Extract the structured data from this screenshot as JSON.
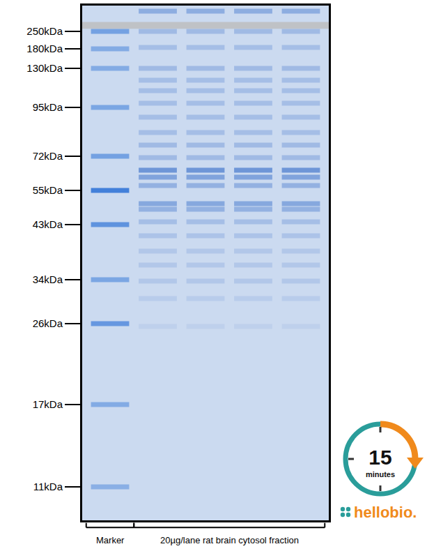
{
  "chart_data": {
    "type": "gel",
    "ylim": [
      0,
      738
    ],
    "yticks": [
      {
        "value": 37,
        "label": "250kDa"
      },
      {
        "value": 62,
        "label": "180kDa"
      },
      {
        "value": 90,
        "label": "130kDa"
      },
      {
        "value": 146,
        "label": "95kDa"
      },
      {
        "value": 216,
        "label": "72kDa"
      },
      {
        "value": 265,
        "label": "55kDa"
      },
      {
        "value": 314,
        "label": "43kDa"
      },
      {
        "value": 393,
        "label": "34kDa"
      },
      {
        "value": 456,
        "label": "26kDa"
      },
      {
        "value": 572,
        "label": "17kDa"
      },
      {
        "value": 690,
        "label": "11kDa"
      }
    ],
    "tick_labels": "y",
    "groups": [
      {
        "label": "Marker",
        "color": "#3b7bd8",
        "lanes": [
          {
            "bands": [
              {
                "y": 37,
                "intensity": 0.6
              },
              {
                "y": 62,
                "intensity": 0.5
              },
              {
                "y": 90,
                "intensity": 0.5
              },
              {
                "y": 146,
                "intensity": 0.55
              },
              {
                "y": 216,
                "intensity": 0.6
              },
              {
                "y": 265,
                "intensity": 0.95
              },
              {
                "y": 314,
                "intensity": 0.75
              },
              {
                "y": 393,
                "intensity": 0.55
              },
              {
                "y": 456,
                "intensity": 0.7
              },
              {
                "y": 572,
                "intensity": 0.5
              },
              {
                "y": 690,
                "intensity": 0.45
              }
            ]
          }
        ]
      },
      {
        "label": "20µg/lane rat brain cytosol fraction",
        "color": "#4f7fcf",
        "lanes": [
          {
            "bands": [
              {
                "y": 8,
                "intensity": 0.5
              },
              {
                "y": 37,
                "intensity": 0.35
              },
              {
                "y": 60,
                "intensity": 0.3
              },
              {
                "y": 90,
                "intensity": 0.35
              },
              {
                "y": 107,
                "intensity": 0.3
              },
              {
                "y": 122,
                "intensity": 0.3
              },
              {
                "y": 140,
                "intensity": 0.3
              },
              {
                "y": 160,
                "intensity": 0.3
              },
              {
                "y": 182,
                "intensity": 0.3
              },
              {
                "y": 200,
                "intensity": 0.35
              },
              {
                "y": 218,
                "intensity": 0.35
              },
              {
                "y": 236,
                "intensity": 0.75
              },
              {
                "y": 246,
                "intensity": 0.6
              },
              {
                "y": 258,
                "intensity": 0.45
              },
              {
                "y": 284,
                "intensity": 0.55
              },
              {
                "y": 292,
                "intensity": 0.45
              },
              {
                "y": 310,
                "intensity": 0.3
              },
              {
                "y": 330,
                "intensity": 0.25
              },
              {
                "y": 352,
                "intensity": 0.2
              },
              {
                "y": 372,
                "intensity": 0.2
              },
              {
                "y": 395,
                "intensity": 0.2
              },
              {
                "y": 420,
                "intensity": 0.15
              },
              {
                "y": 460,
                "intensity": 0.1
              }
            ]
          },
          {
            "bands": [
              {
                "y": 8,
                "intensity": 0.5
              },
              {
                "y": 37,
                "intensity": 0.35
              },
              {
                "y": 60,
                "intensity": 0.3
              },
              {
                "y": 90,
                "intensity": 0.35
              },
              {
                "y": 107,
                "intensity": 0.3
              },
              {
                "y": 122,
                "intensity": 0.3
              },
              {
                "y": 140,
                "intensity": 0.3
              },
              {
                "y": 160,
                "intensity": 0.3
              },
              {
                "y": 182,
                "intensity": 0.3
              },
              {
                "y": 200,
                "intensity": 0.35
              },
              {
                "y": 218,
                "intensity": 0.35
              },
              {
                "y": 236,
                "intensity": 0.75
              },
              {
                "y": 246,
                "intensity": 0.6
              },
              {
                "y": 258,
                "intensity": 0.45
              },
              {
                "y": 284,
                "intensity": 0.55
              },
              {
                "y": 292,
                "intensity": 0.45
              },
              {
                "y": 310,
                "intensity": 0.3
              },
              {
                "y": 330,
                "intensity": 0.25
              },
              {
                "y": 352,
                "intensity": 0.2
              },
              {
                "y": 372,
                "intensity": 0.2
              },
              {
                "y": 395,
                "intensity": 0.2
              },
              {
                "y": 420,
                "intensity": 0.15
              },
              {
                "y": 460,
                "intensity": 0.1
              }
            ]
          },
          {
            "bands": [
              {
                "y": 8,
                "intensity": 0.5
              },
              {
                "y": 37,
                "intensity": 0.35
              },
              {
                "y": 60,
                "intensity": 0.3
              },
              {
                "y": 90,
                "intensity": 0.35
              },
              {
                "y": 107,
                "intensity": 0.3
              },
              {
                "y": 122,
                "intensity": 0.3
              },
              {
                "y": 140,
                "intensity": 0.3
              },
              {
                "y": 160,
                "intensity": 0.3
              },
              {
                "y": 182,
                "intensity": 0.3
              },
              {
                "y": 200,
                "intensity": 0.35
              },
              {
                "y": 218,
                "intensity": 0.35
              },
              {
                "y": 236,
                "intensity": 0.75
              },
              {
                "y": 246,
                "intensity": 0.6
              },
              {
                "y": 258,
                "intensity": 0.45
              },
              {
                "y": 284,
                "intensity": 0.55
              },
              {
                "y": 292,
                "intensity": 0.45
              },
              {
                "y": 310,
                "intensity": 0.3
              },
              {
                "y": 330,
                "intensity": 0.25
              },
              {
                "y": 352,
                "intensity": 0.2
              },
              {
                "y": 372,
                "intensity": 0.2
              },
              {
                "y": 395,
                "intensity": 0.2
              },
              {
                "y": 420,
                "intensity": 0.15
              },
              {
                "y": 460,
                "intensity": 0.1
              }
            ]
          },
          {
            "bands": [
              {
                "y": 8,
                "intensity": 0.5
              },
              {
                "y": 37,
                "intensity": 0.35
              },
              {
                "y": 60,
                "intensity": 0.3
              },
              {
                "y": 90,
                "intensity": 0.35
              },
              {
                "y": 107,
                "intensity": 0.3
              },
              {
                "y": 122,
                "intensity": 0.3
              },
              {
                "y": 140,
                "intensity": 0.3
              },
              {
                "y": 160,
                "intensity": 0.3
              },
              {
                "y": 182,
                "intensity": 0.3
              },
              {
                "y": 200,
                "intensity": 0.35
              },
              {
                "y": 218,
                "intensity": 0.35
              },
              {
                "y": 236,
                "intensity": 0.75
              },
              {
                "y": 246,
                "intensity": 0.6
              },
              {
                "y": 258,
                "intensity": 0.45
              },
              {
                "y": 284,
                "intensity": 0.55
              },
              {
                "y": 292,
                "intensity": 0.45
              },
              {
                "y": 310,
                "intensity": 0.3
              },
              {
                "y": 330,
                "intensity": 0.25
              },
              {
                "y": 352,
                "intensity": 0.2
              },
              {
                "y": 372,
                "intensity": 0.2
              },
              {
                "y": 395,
                "intensity": 0.2
              },
              {
                "y": 420,
                "intensity": 0.15
              },
              {
                "y": 460,
                "intensity": 0.1
              }
            ]
          }
        ]
      }
    ]
  },
  "logo": {
    "number": "15",
    "caption": "minutes",
    "brand": "hellobio."
  }
}
